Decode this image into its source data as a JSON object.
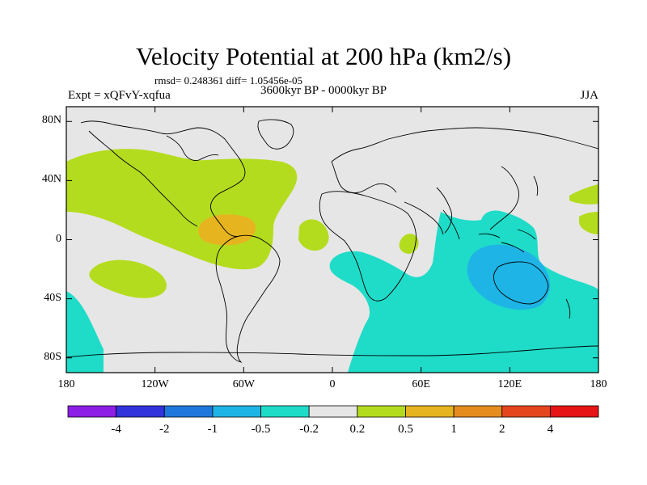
{
  "title": "Velocity Potential at 200 hPa (km2/s)",
  "stats_line": "rmsd= 0.248361 diff= 1.05456e-05",
  "experiment_label": "Expt = xQFvY-xqfua",
  "period_label": "3600kyr BP - 0000kyr BP",
  "season_label": "JJA",
  "axes": {
    "lat_ticks": [
      {
        "value": 80,
        "label": "80N"
      },
      {
        "value": 40,
        "label": "40N"
      },
      {
        "value": 0,
        "label": "0"
      },
      {
        "value": -40,
        "label": "40S"
      },
      {
        "value": -80,
        "label": "80S"
      }
    ],
    "lon_ticks": [
      {
        "value": -180,
        "label": "180"
      },
      {
        "value": -120,
        "label": "120W"
      },
      {
        "value": -60,
        "label": "60W"
      },
      {
        "value": 0,
        "label": "0"
      },
      {
        "value": 60,
        "label": "60E"
      },
      {
        "value": 120,
        "label": "120E"
      },
      {
        "value": 180,
        "label": "180"
      }
    ],
    "lat_range": [
      -90,
      90
    ],
    "lon_range": [
      -180,
      180
    ]
  },
  "colorbar": {
    "colors": [
      "#8c1ee6",
      "#3232dc",
      "#1e78dc",
      "#1eb4e6",
      "#1edcc8",
      "#e6e6e6",
      "#b4dc1e",
      "#e6b41e",
      "#e68c1e",
      "#e6461e",
      "#e61414"
    ],
    "labels": [
      "-4",
      "-2",
      "-1",
      "-0.5",
      "-0.2",
      "0.2",
      "0.5",
      "1",
      "2",
      "4"
    ]
  },
  "map_colors": {
    "ocean_background": "#e6e6e6",
    "positive_weak": "#b4dc1e",
    "positive_mid": "#e6b41e",
    "negative_weak": "#1edcc8",
    "negative_mid": "#1eb4e6"
  }
}
